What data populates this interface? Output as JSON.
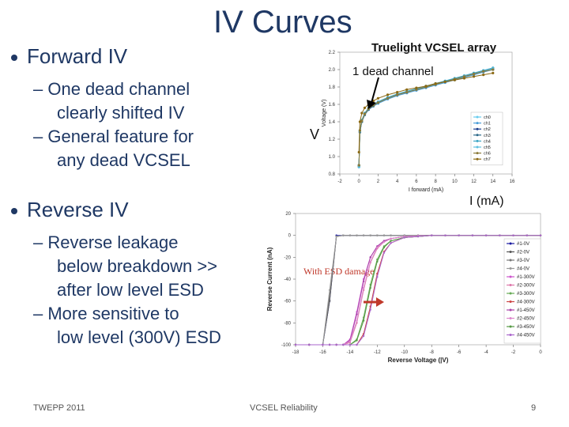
{
  "slide": {
    "title": "IV Curves",
    "bullets": [
      {
        "text": "Forward IV",
        "sub": [
          "– One dead channel",
          "clearly shifted IV",
          "– General feature for",
          "any dead VCSEL"
        ]
      },
      {
        "text": "Reverse IV",
        "sub": [
          "– Reverse leakage",
          "below breakdown >>",
          "after low level ESD",
          "– More sensitive to",
          "low level (300V) ESD"
        ]
      }
    ],
    "footer_left": "TWEPP 2011",
    "footer_center": "VCSEL Reliability",
    "page_number": "9"
  },
  "annotations": {
    "array_label": "Truelight VCSEL array",
    "dead_label": "1 dead channel",
    "v_label": "V",
    "i_label": "I (mA)",
    "esd_label": "With ESD damage"
  },
  "chart_data": [
    {
      "type": "line",
      "xlabel": "I forward (mA)",
      "ylabel": "Voltage (V)",
      "xlim": [
        -2,
        16
      ],
      "ylim": [
        0.8,
        2.2
      ],
      "xticks": [
        "-2",
        "0",
        "2",
        "4",
        "6",
        "8",
        "10",
        "12",
        "14",
        "16"
      ],
      "yticks": [
        "0.8",
        "1.0",
        "1.2",
        "1.4",
        "1.6",
        "1.8",
        "2.0",
        "2.2"
      ],
      "x": [
        0,
        0.1,
        0.3,
        0.6,
        1,
        1.5,
        2,
        3,
        4,
        5,
        6,
        7,
        8,
        9,
        10,
        11,
        12,
        13,
        14
      ],
      "series": [
        {
          "name": "ch0",
          "color": "#66ccee",
          "values": [
            0.9,
            1.3,
            1.42,
            1.5,
            1.56,
            1.6,
            1.63,
            1.68,
            1.72,
            1.75,
            1.78,
            1.81,
            1.84,
            1.87,
            1.9,
            1.93,
            1.96,
            1.99,
            2.02
          ]
        },
        {
          "name": "ch1",
          "color": "#4a9ed8",
          "values": [
            0.88,
            1.28,
            1.4,
            1.48,
            1.54,
            1.58,
            1.61,
            1.66,
            1.7,
            1.73,
            1.76,
            1.79,
            1.82,
            1.85,
            1.88,
            1.91,
            1.94,
            1.97,
            2.0
          ]
        },
        {
          "name": "ch2",
          "color": "#1a3c8c",
          "values": [
            0.9,
            1.29,
            1.41,
            1.49,
            1.55,
            1.59,
            1.62,
            1.67,
            1.71,
            1.74,
            1.77,
            1.8,
            1.83,
            1.86,
            1.89,
            1.92,
            1.95,
            1.98,
            2.01
          ]
        },
        {
          "name": "ch3",
          "color": "#2d6a8a",
          "values": [
            0.89,
            1.28,
            1.4,
            1.48,
            1.54,
            1.58,
            1.62,
            1.67,
            1.71,
            1.74,
            1.77,
            1.8,
            1.83,
            1.86,
            1.89,
            1.92,
            1.95,
            1.98,
            2.0
          ]
        },
        {
          "name": "ch4",
          "color": "#3da5c5",
          "values": [
            0.9,
            1.3,
            1.42,
            1.5,
            1.55,
            1.6,
            1.63,
            1.68,
            1.72,
            1.75,
            1.78,
            1.81,
            1.84,
            1.87,
            1.9,
            1.93,
            1.96,
            1.99,
            2.02
          ]
        },
        {
          "name": "ch5",
          "color": "#5fc0e0",
          "values": [
            0.88,
            1.29,
            1.41,
            1.49,
            1.55,
            1.59,
            1.62,
            1.67,
            1.71,
            1.74,
            1.77,
            1.8,
            1.83,
            1.86,
            1.89,
            1.92,
            1.95,
            1.98,
            2.01
          ]
        },
        {
          "name": "ch6",
          "color": "#8a7a3a",
          "values": [
            0.9,
            1.3,
            1.41,
            1.49,
            1.55,
            1.59,
            1.62,
            1.67,
            1.71,
            1.74,
            1.77,
            1.8,
            1.83,
            1.86,
            1.89,
            1.92,
            1.95,
            1.98,
            2.0
          ]
        },
        {
          "name": "ch7",
          "color": "#8b6914",
          "values": [
            1.05,
            1.4,
            1.5,
            1.56,
            1.6,
            1.64,
            1.67,
            1.71,
            1.74,
            1.77,
            1.79,
            1.81,
            1.84,
            1.86,
            1.88,
            1.9,
            1.92,
            1.94,
            1.96
          ]
        }
      ]
    },
    {
      "type": "line",
      "xlabel": "Reverse Voltage (|V)",
      "ylabel": "Reverse Current (nA)",
      "xlim": [
        -18,
        0
      ],
      "ylim": [
        -100,
        20
      ],
      "xticks": [
        "-18",
        "-16",
        "-14",
        "-12",
        "-10",
        "-8",
        "-6",
        "-4",
        "-2",
        "0"
      ],
      "yticks": [
        "20",
        "0",
        "-20",
        "-40",
        "-60",
        "-80",
        "-100"
      ],
      "x": [
        -18,
        -17,
        -16,
        -15.5,
        -15,
        -14.5,
        -14,
        -13.5,
        -13,
        -12.5,
        -12,
        -11.5,
        -11,
        -10,
        -9,
        -8,
        -7,
        -6,
        -5,
        -4,
        -3,
        -2,
        -1,
        0
      ],
      "series": [
        {
          "name": "#1-0V",
          "color": "#1a1aa0",
          "values": [
            -100,
            -100,
            -100,
            -60,
            0,
            0,
            0,
            0,
            0,
            0,
            0,
            0,
            0,
            0,
            0,
            0,
            0,
            0,
            0,
            0,
            0,
            0,
            0,
            0
          ]
        },
        {
          "name": "#2-0V",
          "color": "#555555",
          "values": [
            -100,
            -100,
            -100,
            -60,
            -1,
            0,
            0,
            0,
            0,
            0,
            0,
            0,
            0,
            0,
            0,
            0,
            0,
            0,
            0,
            0,
            0,
            0,
            0,
            0
          ]
        },
        {
          "name": "#3-0V",
          "color": "#777777",
          "values": [
            -100,
            -100,
            -100,
            -55,
            -1,
            0,
            0,
            0,
            0,
            0,
            0,
            0,
            0,
            0,
            0,
            0,
            0,
            0,
            0,
            0,
            0,
            0,
            0,
            0
          ]
        },
        {
          "name": "#4-0V",
          "color": "#999999",
          "values": [
            -100,
            -100,
            -100,
            -50,
            -1,
            0,
            0,
            0,
            0,
            0,
            0,
            0,
            0,
            0,
            0,
            0,
            0,
            0,
            0,
            0,
            0,
            0,
            0,
            0
          ]
        },
        {
          "name": "#1-300V",
          "color": "#cc55cc",
          "values": [
            -100,
            -100,
            -100,
            -100,
            -100,
            -100,
            -95,
            -70,
            -40,
            -20,
            -10,
            -5,
            -3,
            -1,
            -0.5,
            0,
            0,
            0,
            0,
            0,
            0,
            0,
            0,
            0
          ]
        },
        {
          "name": "#2-300V",
          "color": "#dd77aa",
          "values": [
            -100,
            -100,
            -100,
            -100,
            -100,
            -100,
            -98,
            -80,
            -50,
            -25,
            -12,
            -6,
            -3,
            -1,
            -0.5,
            0,
            0,
            0,
            0,
            0,
            0,
            0,
            0,
            0
          ]
        },
        {
          "name": "#3-300V",
          "color": "#66aa55",
          "values": [
            -100,
            -100,
            -100,
            -100,
            -100,
            -100,
            -100,
            -95,
            -75,
            -45,
            -22,
            -10,
            -5,
            -2,
            -1,
            0,
            0,
            0,
            0,
            0,
            0,
            0,
            0,
            0
          ]
        },
        {
          "name": "#4-300V",
          "color": "#cc4444",
          "values": [
            -100,
            -100,
            -100,
            -100,
            -100,
            -100,
            -100,
            -100,
            -90,
            -65,
            -35,
            -15,
            -7,
            -2,
            -1,
            0,
            0,
            0,
            0,
            0,
            0,
            0,
            0,
            0
          ]
        },
        {
          "name": "#1-450V",
          "color": "#aa44aa",
          "values": [
            -100,
            -100,
            -100,
            -100,
            -100,
            -100,
            -96,
            -72,
            -42,
            -20,
            -10,
            -5,
            -3,
            -1,
            -0.5,
            0,
            0,
            0,
            0,
            0,
            0,
            0,
            0,
            0
          ]
        },
        {
          "name": "#2-450V",
          "color": "#dd88cc",
          "values": [
            -100,
            -100,
            -100,
            -100,
            -100,
            -100,
            -97,
            -78,
            -48,
            -24,
            -11,
            -6,
            -3,
            -1,
            -0.5,
            0,
            0,
            0,
            0,
            0,
            0,
            0,
            0,
            0
          ]
        },
        {
          "name": "#3-450V",
          "color": "#559944",
          "values": [
            -100,
            -100,
            -100,
            -100,
            -100,
            -100,
            -100,
            -96,
            -78,
            -48,
            -24,
            -11,
            -5,
            -2,
            -1,
            0,
            0,
            0,
            0,
            0,
            0,
            0,
            0,
            0
          ]
        },
        {
          "name": "#4-450V",
          "color": "#aa66cc",
          "values": [
            -100,
            -100,
            -100,
            -100,
            -100,
            -100,
            -100,
            -100,
            -92,
            -68,
            -38,
            -16,
            -7,
            -2,
            -1,
            0,
            0,
            0,
            0,
            0,
            0,
            0,
            0,
            0
          ]
        }
      ]
    }
  ]
}
